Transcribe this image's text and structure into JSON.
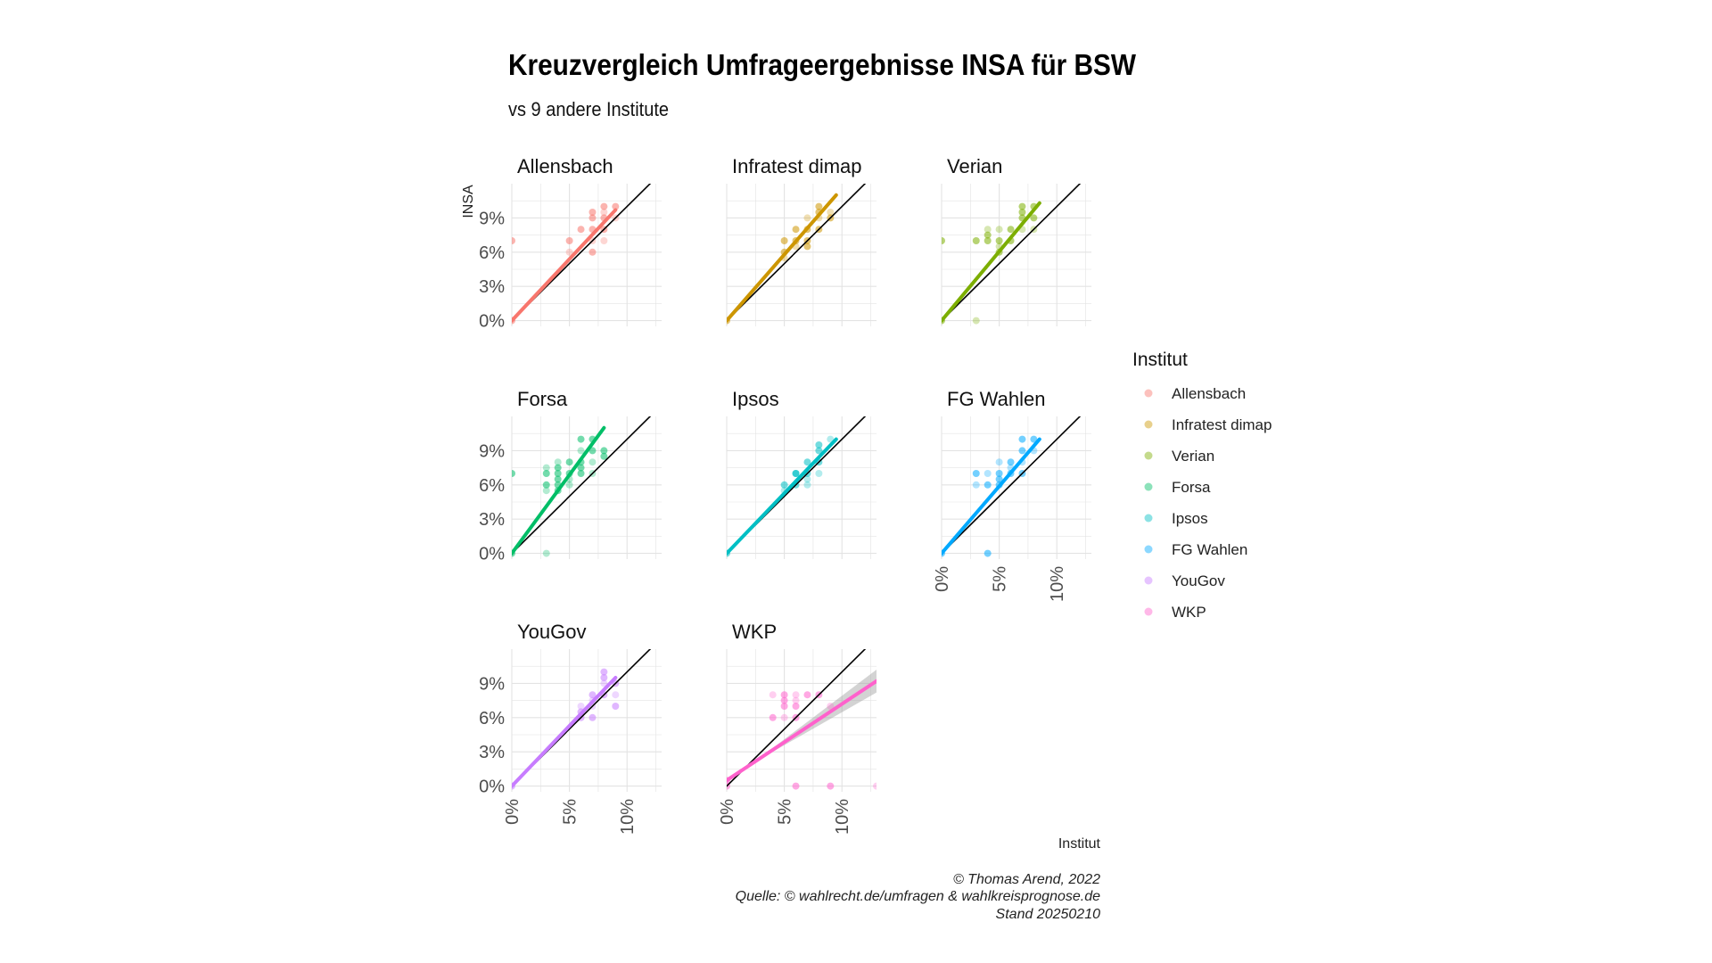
{
  "chart_data": {
    "type": "scatter",
    "title": "Kreuzvergleich Umfrageergebnisse INSA für BSW",
    "subtitle": "vs 9 andere Institute",
    "ylabel": "INSA",
    "xlabel": "Institut",
    "x_ticks": [
      "0%",
      "5%",
      "10%"
    ],
    "y_ticks": [
      "0%",
      "3%",
      "6%",
      "9%"
    ],
    "xlim": [
      0,
      13
    ],
    "ylim": [
      -0.5,
      12
    ],
    "grid": true,
    "legend_title": "Institut",
    "legend_position": "right",
    "caption": [
      "© Thomas Arend, 2022",
      "Quelle: © wahlrecht.de/umfragen & wahlkreisprognose.de",
      "Stand 20250210"
    ],
    "series": [
      {
        "name": "Allensbach",
        "color": "#F8766D",
        "fit": [
          [
            0,
            0
          ],
          [
            9,
            9.7
          ]
        ],
        "points": [
          [
            0,
            0
          ],
          [
            0,
            7
          ],
          [
            5,
            6
          ],
          [
            5,
            7
          ],
          [
            6,
            8
          ],
          [
            7,
            7
          ],
          [
            7,
            8
          ],
          [
            7,
            9
          ],
          [
            8,
            7
          ],
          [
            8,
            8
          ],
          [
            8,
            9
          ],
          [
            9,
            9
          ],
          [
            9,
            10
          ],
          [
            7,
            9.5
          ],
          [
            8,
            9.5
          ],
          [
            7,
            6
          ],
          [
            8,
            10
          ]
        ]
      },
      {
        "name": "Infratest dimap",
        "color": "#CD9600",
        "fit": [
          [
            0,
            0
          ],
          [
            9.5,
            11
          ]
        ],
        "points": [
          [
            0,
            0
          ],
          [
            5,
            6
          ],
          [
            5,
            5.5
          ],
          [
            6,
            7
          ],
          [
            6,
            8
          ],
          [
            6,
            6.5
          ],
          [
            7,
            7
          ],
          [
            7,
            8
          ],
          [
            7,
            9
          ],
          [
            7,
            6.5
          ],
          [
            8,
            8
          ],
          [
            8,
            9
          ],
          [
            8,
            10
          ],
          [
            9,
            9
          ],
          [
            9,
            9.5
          ],
          [
            5,
            7
          ],
          [
            8,
            9.5
          ]
        ]
      },
      {
        "name": "Verian",
        "color": "#7CAE00",
        "fit": [
          [
            0,
            0
          ],
          [
            8.5,
            10.3
          ]
        ],
        "points": [
          [
            0,
            0
          ],
          [
            0,
            7
          ],
          [
            3,
            0
          ],
          [
            3,
            7
          ],
          [
            4,
            7
          ],
          [
            4,
            8
          ],
          [
            5,
            6
          ],
          [
            5,
            7
          ],
          [
            5,
            8
          ],
          [
            6,
            7
          ],
          [
            6,
            8
          ],
          [
            7,
            8
          ],
          [
            7,
            9
          ],
          [
            7,
            10
          ],
          [
            8,
            8
          ],
          [
            8,
            9
          ],
          [
            8,
            10
          ],
          [
            5,
            6.5
          ],
          [
            4,
            7.5
          ],
          [
            7,
            9.5
          ]
        ]
      },
      {
        "name": "Forsa",
        "color": "#00BE67",
        "fit": [
          [
            0,
            0
          ],
          [
            8,
            11
          ]
        ],
        "points": [
          [
            0,
            0
          ],
          [
            0,
            7
          ],
          [
            3,
            0
          ],
          [
            3,
            6
          ],
          [
            3,
            7
          ],
          [
            3,
            7.5
          ],
          [
            4,
            6
          ],
          [
            4,
            7
          ],
          [
            4,
            8
          ],
          [
            4,
            6.5
          ],
          [
            4,
            7.5
          ],
          [
            5,
            6
          ],
          [
            5,
            7
          ],
          [
            5,
            8
          ],
          [
            5,
            6.5
          ],
          [
            6,
            7
          ],
          [
            6,
            8
          ],
          [
            6,
            9
          ],
          [
            6,
            10
          ],
          [
            6,
            7.5
          ],
          [
            7,
            8
          ],
          [
            7,
            9
          ],
          [
            7,
            10
          ],
          [
            7,
            7
          ],
          [
            8,
            9
          ],
          [
            8,
            8.5
          ],
          [
            3,
            5.5
          ],
          [
            4,
            5.5
          ]
        ]
      },
      {
        "name": "Ipsos",
        "color": "#00BFC4",
        "fit": [
          [
            0,
            0
          ],
          [
            9.5,
            10
          ]
        ],
        "points": [
          [
            0,
            0
          ],
          [
            5,
            6
          ],
          [
            5,
            5.5
          ],
          [
            6,
            6
          ],
          [
            6,
            7
          ],
          [
            7,
            6
          ],
          [
            7,
            7
          ],
          [
            7,
            8
          ],
          [
            8,
            7
          ],
          [
            8,
            8
          ],
          [
            8,
            9
          ],
          [
            9,
            10
          ],
          [
            6,
            7
          ],
          [
            8,
            9.5
          ],
          [
            7,
            6.5
          ]
        ]
      },
      {
        "name": "FG Wahlen",
        "color": "#00A9FF",
        "fit": [
          [
            0,
            0
          ],
          [
            8.5,
            10
          ]
        ],
        "points": [
          [
            0,
            0
          ],
          [
            4,
            0
          ],
          [
            3,
            6
          ],
          [
            3,
            7
          ],
          [
            4,
            6
          ],
          [
            4,
            7
          ],
          [
            5,
            6
          ],
          [
            5,
            7
          ],
          [
            5,
            8
          ],
          [
            6,
            7
          ],
          [
            6,
            8
          ],
          [
            7,
            8
          ],
          [
            7,
            9
          ],
          [
            7,
            10
          ],
          [
            8,
            9
          ],
          [
            8,
            10
          ],
          [
            5,
            6.5
          ],
          [
            6,
            7.5
          ],
          [
            7,
            7
          ]
        ]
      },
      {
        "name": "YouGov",
        "color": "#C77CFF",
        "fit": [
          [
            0,
            0
          ],
          [
            9,
            9.5
          ]
        ],
        "points": [
          [
            0,
            0
          ],
          [
            6,
            6
          ],
          [
            6,
            7
          ],
          [
            6,
            6.5
          ],
          [
            7,
            6
          ],
          [
            7,
            7
          ],
          [
            7,
            8
          ],
          [
            8,
            8
          ],
          [
            8,
            9
          ],
          [
            8,
            10
          ],
          [
            9,
            9
          ],
          [
            9,
            8
          ],
          [
            9,
            7
          ],
          [
            8,
            9.5
          ],
          [
            7,
            7.5
          ]
        ]
      },
      {
        "name": "WKP",
        "color": "#FF61CC",
        "fit": [
          [
            0,
            0.5
          ],
          [
            13,
            9.2
          ]
        ],
        "points": [
          [
            0,
            0
          ],
          [
            0,
            0.5
          ],
          [
            4,
            8
          ],
          [
            5,
            7
          ],
          [
            5,
            8
          ],
          [
            5,
            6
          ],
          [
            6,
            6
          ],
          [
            6,
            7
          ],
          [
            6,
            8
          ],
          [
            7,
            8
          ],
          [
            8,
            8
          ],
          [
            9,
            7
          ],
          [
            6,
            0
          ],
          [
            9,
            0
          ],
          [
            13,
            0
          ],
          [
            4,
            6
          ],
          [
            5,
            7.5
          ],
          [
            6,
            7.5
          ]
        ]
      }
    ]
  }
}
